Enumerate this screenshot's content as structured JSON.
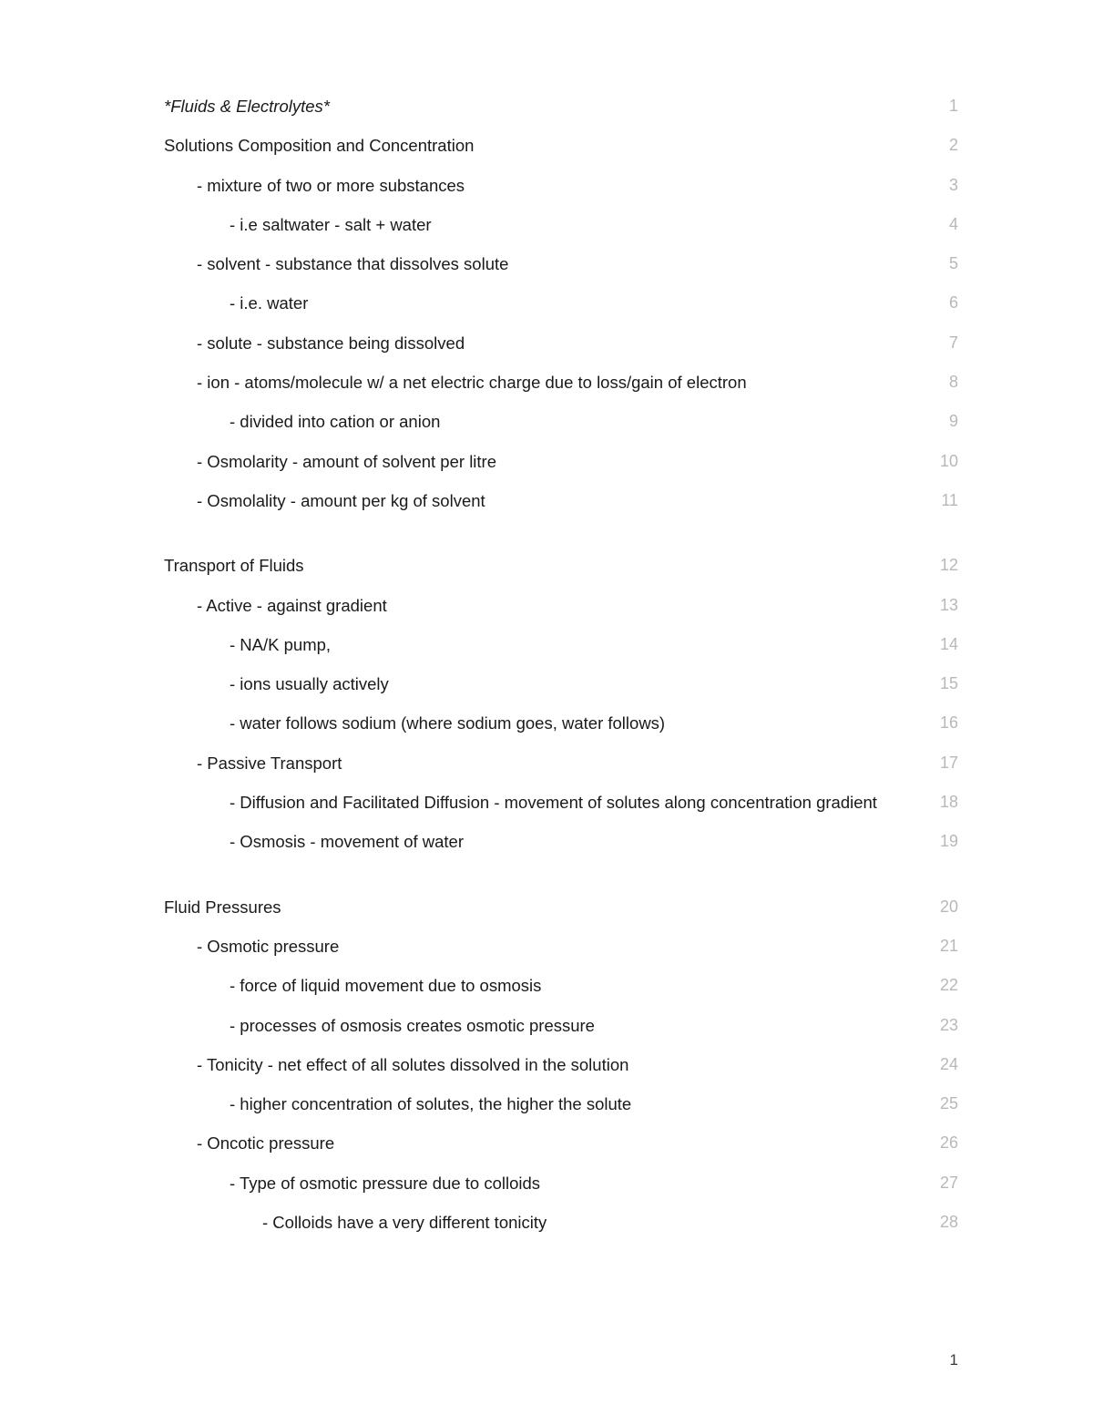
{
  "page_number": "1",
  "text_color": "#1a1a1a",
  "linenum_color": "#b8b8b8",
  "background_color": "#ffffff",
  "font_size_body": 18.5,
  "font_size_linenum": 18,
  "lines": [
    {
      "indent": 0,
      "text": "*Fluids & Electrolytes*",
      "num": "1",
      "italic": true
    },
    {
      "indent": 0,
      "text": "Solutions Composition and Concentration",
      "num": "2"
    },
    {
      "indent": 1,
      "text": "- mixture of two or more substances",
      "num": "3"
    },
    {
      "indent": 2,
      "text": "- i.e saltwater - salt + water",
      "num": "4"
    },
    {
      "indent": 1,
      "text": "- solvent - substance that dissolves solute",
      "num": "5"
    },
    {
      "indent": 2,
      "text": "- i.e. water",
      "num": "6"
    },
    {
      "indent": 1,
      "text": "- solute - substance being dissolved",
      "num": "7"
    },
    {
      "indent": 1,
      "text": "- ion - atoms/molecule w/ a net electric charge due to loss/gain of electron",
      "num": "8"
    },
    {
      "indent": 2,
      "text": "- divided into cation or anion",
      "num": "9"
    },
    {
      "indent": 1,
      "text": "- Osmolarity - amount of solvent per litre",
      "num": "10"
    },
    {
      "indent": 1,
      "text": "- Osmolality - amount per kg of solvent",
      "num": "11"
    },
    {
      "spacer": true
    },
    {
      "indent": 0,
      "text": "Transport of Fluids",
      "num": "12"
    },
    {
      "indent": 1,
      "text": "- Active - against gradient",
      "num": "13"
    },
    {
      "indent": 2,
      "text": "- NA/K pump,",
      "num": "14"
    },
    {
      "indent": 2,
      "text": "- ions usually actively",
      "num": "15"
    },
    {
      "indent": 2,
      "text": "- water follows sodium (where sodium goes, water follows)",
      "num": "16"
    },
    {
      "indent": 1,
      "text": "- Passive Transport",
      "num": "17"
    },
    {
      "indent": 2,
      "text": "- Diffusion and Facilitated Diffusion - movement of solutes along concentration gradient",
      "num": "18"
    },
    {
      "indent": 2,
      "text": "- Osmosis - movement of water",
      "num": "19"
    },
    {
      "spacer": true
    },
    {
      "indent": 0,
      "text": "Fluid Pressures",
      "num": "20"
    },
    {
      "indent": 1,
      "text": "- Osmotic pressure",
      "num": "21"
    },
    {
      "indent": 2,
      "text": "- force of liquid movement due to osmosis",
      "num": "22"
    },
    {
      "indent": 2,
      "text": "- processes of osmosis creates osmotic pressure",
      "num": "23"
    },
    {
      "indent": 1,
      "text": "- Tonicity - net effect of all solutes dissolved in the solution",
      "num": "24"
    },
    {
      "indent": 2,
      "text": "- higher concentration of solutes, the higher the solute",
      "num": "25"
    },
    {
      "indent": 1,
      "text": "- Oncotic pressure",
      "num": "26"
    },
    {
      "indent": 2,
      "text": "- Type of osmotic pressure due to colloids",
      "num": "27"
    },
    {
      "indent": 3,
      "text": "- Colloids have a very different tonicity",
      "num": "28"
    }
  ]
}
